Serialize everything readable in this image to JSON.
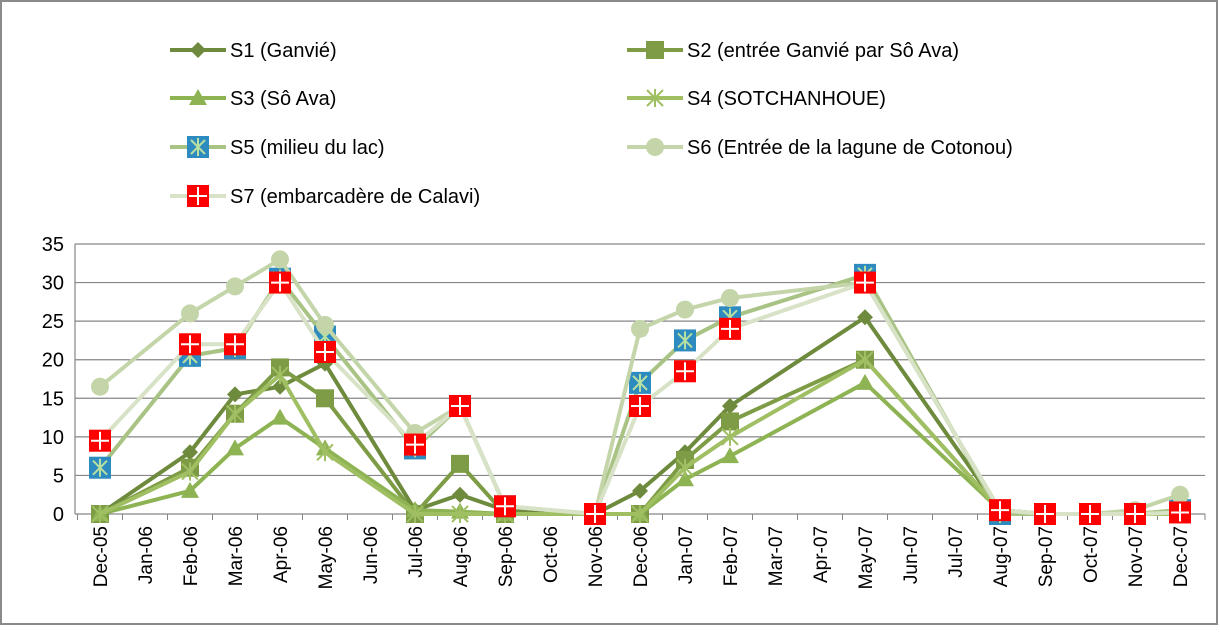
{
  "chart_data": {
    "type": "line",
    "categories": [
      "Dec-05",
      "Jan-06",
      "Feb-06",
      "Mar-06",
      "Apr-06",
      "May-06",
      "Jun-06",
      "Jul-06",
      "Aug-06",
      "Sep-06",
      "Oct-06",
      "Nov-06",
      "Dec-06",
      "Jan-07",
      "Feb-07",
      "Mar-07",
      "Apr-07",
      "May-07",
      "Jun-07",
      "Jul-07",
      "Aug-07",
      "Sep-07",
      "Oct-07",
      "Nov-07",
      "Dec-07"
    ],
    "x": [
      "Dec-05",
      "Feb-06",
      "Mar-06",
      "Apr-06",
      "May-06",
      "Jul-06",
      "Aug-06",
      "Sep-06",
      "Nov-06",
      "Dec-06",
      "Jan-07",
      "Feb-07",
      "May-07",
      "Aug-07",
      "Sep-07",
      "Oct-07",
      "Nov-07",
      "Dec-07"
    ],
    "series": [
      {
        "name": "S1 (Ganvié)",
        "color": "#6e8a3c",
        "marker": "diamond",
        "values": [
          0,
          8,
          15.5,
          16.5,
          19.5,
          0.5,
          2.5,
          0.5,
          0,
          3,
          8,
          14,
          25.5,
          0.5,
          0,
          0,
          0,
          0.5
        ]
      },
      {
        "name": "S2 (entrée Ganvié par Sô Ava)",
        "color": "#7e9c45",
        "marker": "square",
        "values": [
          0,
          6,
          13,
          19,
          15,
          0,
          6.5,
          0,
          0,
          0,
          7,
          12,
          20,
          0.5,
          0,
          0,
          0,
          0
        ]
      },
      {
        "name": "S3 (Sô Ava)",
        "color": "#8db352",
        "marker": "triangle",
        "values": [
          0,
          3,
          8.5,
          12.5,
          8.5,
          0.5,
          0.3,
          0,
          0,
          0,
          4.5,
          7.5,
          17,
          0.5,
          0,
          0,
          0,
          0
        ]
      },
      {
        "name": "S4 (SOTCHANHOUE)",
        "color": "#9fbf62",
        "marker": "star",
        "values": [
          0,
          5.5,
          13,
          18,
          8,
          0,
          0,
          0,
          0,
          0,
          6,
          10,
          20,
          0.5,
          0,
          0,
          0,
          0
        ]
      },
      {
        "name": "S5 (milieu du lac)",
        "color": "#a9c384",
        "marker": "asterisk-square",
        "marker_color": "#2e8bc0",
        "values": [
          6,
          20.5,
          21.5,
          30.5,
          23,
          8.5,
          14,
          1,
          0,
          17,
          22.5,
          25.5,
          31,
          0,
          0,
          0,
          0,
          0.5
        ]
      },
      {
        "name": "S6 (Entrée de la lagune de Cotonou)",
        "color": "#c3d5a9",
        "marker": "circle",
        "values": [
          16.5,
          26,
          29.5,
          33,
          24.5,
          10.5,
          14,
          1,
          0,
          24,
          26.5,
          28,
          30,
          0.5,
          0,
          0,
          0.5,
          2.5
        ]
      },
      {
        "name": "S7 (embarcadère de Calavi)",
        "color": "#d7e2c6",
        "marker": "cross-square",
        "marker_color": "#ff0000",
        "values": [
          9.5,
          22,
          22,
          30,
          21,
          9,
          14,
          1,
          0,
          14,
          18.5,
          24,
          30,
          0.5,
          0,
          0,
          0,
          0.2
        ]
      }
    ],
    "ylim": [
      0,
      35
    ],
    "yticks": [
      0,
      5,
      10,
      15,
      20,
      25,
      30,
      35
    ],
    "grid": true,
    "legend": "top"
  }
}
